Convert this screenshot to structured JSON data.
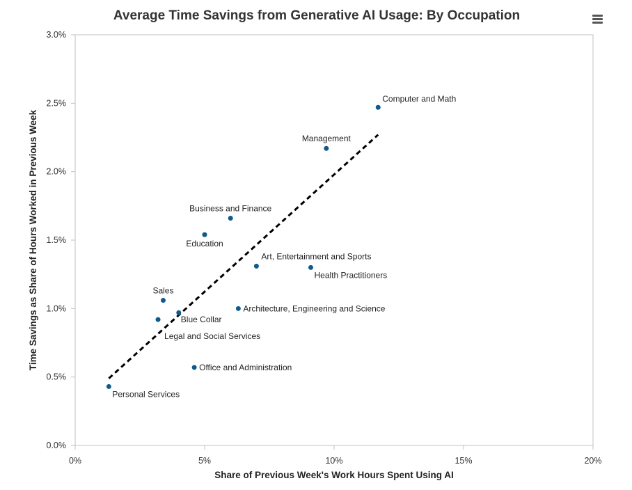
{
  "chart_data": {
    "type": "scatter",
    "title": "Average Time Savings from Generative AI Usage: By Occupation",
    "xlabel": "Share of Previous Week's Work Hours Spent Using AI",
    "ylabel": "Time Savings as Share of Hours Worked in Previous Week",
    "xlim": [
      0,
      20
    ],
    "ylim": [
      0,
      3.0
    ],
    "x_ticks": [
      "0%",
      "5%",
      "10%",
      "15%",
      "20%"
    ],
    "y_ticks": [
      "0.0%",
      "0.5%",
      "1.0%",
      "1.5%",
      "2.0%",
      "2.5%",
      "3.0%"
    ],
    "points": [
      {
        "label": "Computer and Math",
        "x": 11.7,
        "y": 2.47
      },
      {
        "label": "Management",
        "x": 9.7,
        "y": 2.17
      },
      {
        "label": "Business and Finance",
        "x": 6.0,
        "y": 1.66
      },
      {
        "label": "Education",
        "x": 5.0,
        "y": 1.54
      },
      {
        "label": "Art, Entertainment and Sports",
        "x": 7.0,
        "y": 1.31
      },
      {
        "label": "Health Practitioners",
        "x": 9.1,
        "y": 1.3
      },
      {
        "label": "Sales",
        "x": 3.4,
        "y": 1.06
      },
      {
        "label": "Architecture, Engineering and Science",
        "x": 6.3,
        "y": 1.0
      },
      {
        "label": "Blue Collar",
        "x": 4.0,
        "y": 0.97
      },
      {
        "label": "Legal and Social Services",
        "x": 3.2,
        "y": 0.92
      },
      {
        "label": "Office and Administration",
        "x": 4.6,
        "y": 0.57
      },
      {
        "label": "Personal Services",
        "x": 1.3,
        "y": 0.43
      }
    ],
    "trendline": {
      "style": "dashed",
      "x": [
        1.3,
        11.7
      ],
      "y": [
        0.49,
        2.27
      ]
    },
    "grid": false,
    "legend": "none",
    "point_color": "#0f5a8c",
    "trend_color": "#000000"
  }
}
